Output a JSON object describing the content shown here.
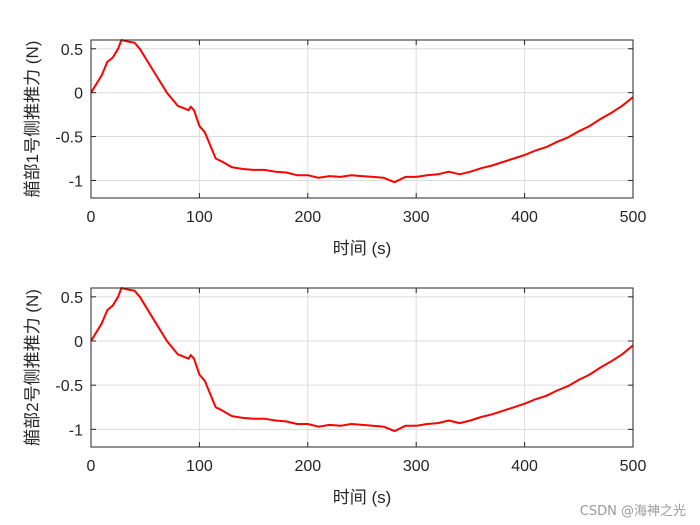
{
  "chart_data": [
    {
      "type": "line",
      "xlabel": "时间 (s)",
      "ylabel": "艏部1号侧推推力 (N)",
      "xlim": [
        0,
        500
      ],
      "ylim": [
        -1.2,
        0.6
      ],
      "xticks": [
        0,
        100,
        200,
        300,
        400,
        500
      ],
      "yticks": [
        -1,
        -0.5,
        0,
        0.5
      ],
      "xtick_labels": [
        "0",
        "100",
        "200",
        "300",
        "400",
        "500"
      ],
      "ytick_labels": [
        "-1",
        "-0.5",
        "0",
        "0.5"
      ],
      "grid": true,
      "color": "#ff0000",
      "x": [
        0,
        5,
        10,
        15,
        20,
        25,
        28,
        35,
        40,
        45,
        50,
        60,
        70,
        80,
        90,
        92,
        95,
        100,
        105,
        110,
        115,
        120,
        130,
        140,
        150,
        160,
        170,
        180,
        190,
        200,
        210,
        220,
        230,
        240,
        250,
        260,
        270,
        280,
        290,
        300,
        310,
        320,
        330,
        340,
        350,
        360,
        370,
        380,
        390,
        400,
        410,
        420,
        430,
        440,
        450,
        460,
        470,
        480,
        490,
        500
      ],
      "y": [
        0,
        0.1,
        0.2,
        0.35,
        0.4,
        0.5,
        0.6,
        0.58,
        0.57,
        0.5,
        0.4,
        0.2,
        0.0,
        -0.15,
        -0.2,
        -0.16,
        -0.2,
        -0.38,
        -0.45,
        -0.6,
        -0.75,
        -0.78,
        -0.85,
        -0.87,
        -0.88,
        -0.88,
        -0.9,
        -0.91,
        -0.94,
        -0.94,
        -0.97,
        -0.95,
        -0.96,
        -0.94,
        -0.95,
        -0.96,
        -0.97,
        -1.02,
        -0.96,
        -0.96,
        -0.94,
        -0.93,
        -0.9,
        -0.93,
        -0.9,
        -0.86,
        -0.83,
        -0.79,
        -0.75,
        -0.71,
        -0.66,
        -0.62,
        -0.56,
        -0.51,
        -0.44,
        -0.38,
        -0.3,
        -0.23,
        -0.15,
        -0.05
      ]
    },
    {
      "type": "line",
      "xlabel": "时间 (s)",
      "ylabel": "艏部2号侧推推力 (N)",
      "xlim": [
        0,
        500
      ],
      "ylim": [
        -1.2,
        0.6
      ],
      "xticks": [
        0,
        100,
        200,
        300,
        400,
        500
      ],
      "yticks": [
        -1,
        -0.5,
        0,
        0.5
      ],
      "xtick_labels": [
        "0",
        "100",
        "200",
        "300",
        "400",
        "500"
      ],
      "ytick_labels": [
        "-1",
        "-0.5",
        "0",
        "0.5"
      ],
      "grid": true,
      "color": "#ff0000",
      "x": [
        0,
        5,
        10,
        15,
        20,
        25,
        28,
        35,
        40,
        45,
        50,
        60,
        70,
        80,
        90,
        92,
        95,
        100,
        105,
        110,
        115,
        120,
        130,
        140,
        150,
        160,
        170,
        180,
        190,
        200,
        210,
        220,
        230,
        240,
        250,
        260,
        270,
        280,
        290,
        300,
        310,
        320,
        330,
        340,
        350,
        360,
        370,
        380,
        390,
        400,
        410,
        420,
        430,
        440,
        450,
        460,
        470,
        480,
        490,
        500
      ],
      "y": [
        0,
        0.1,
        0.2,
        0.35,
        0.4,
        0.5,
        0.6,
        0.58,
        0.57,
        0.5,
        0.4,
        0.2,
        0.0,
        -0.15,
        -0.2,
        -0.16,
        -0.2,
        -0.38,
        -0.45,
        -0.6,
        -0.75,
        -0.78,
        -0.85,
        -0.87,
        -0.88,
        -0.88,
        -0.9,
        -0.91,
        -0.94,
        -0.94,
        -0.97,
        -0.95,
        -0.96,
        -0.94,
        -0.95,
        -0.96,
        -0.97,
        -1.02,
        -0.96,
        -0.96,
        -0.94,
        -0.93,
        -0.9,
        -0.93,
        -0.9,
        -0.86,
        -0.83,
        -0.79,
        -0.75,
        -0.71,
        -0.66,
        -0.62,
        -0.56,
        -0.51,
        -0.44,
        -0.38,
        -0.3,
        -0.23,
        -0.15,
        -0.05
      ]
    }
  ],
  "watermark": "CSDN @海神之光"
}
